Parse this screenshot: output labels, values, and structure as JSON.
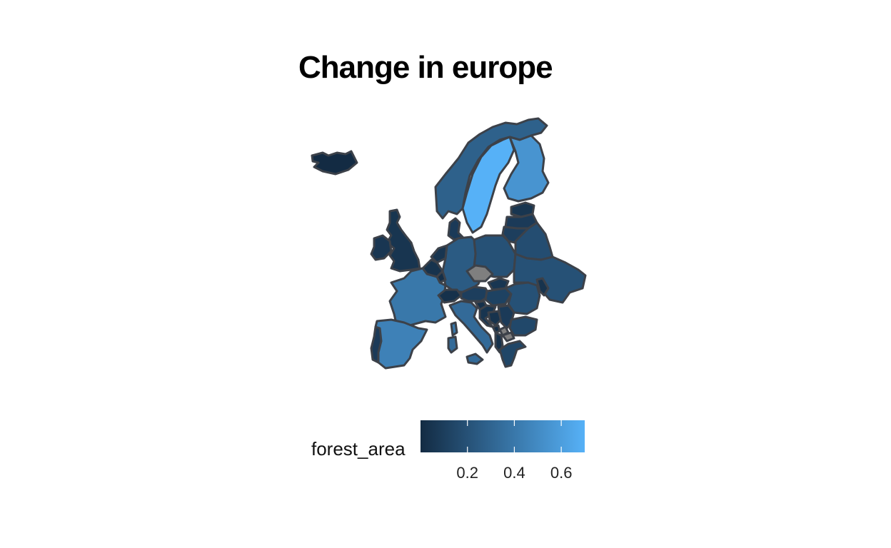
{
  "title": "Change in europe",
  "legend": {
    "title": "forest_area",
    "min": 0.0,
    "max": 0.7,
    "color_low": "#132B43",
    "color_high": "#56B1F7",
    "na_color": "#7f7f7f",
    "ticks": [
      {
        "value": 0.2,
        "label": "0.2"
      },
      {
        "value": 0.4,
        "label": "0.4"
      },
      {
        "value": 0.6,
        "label": "0.6"
      }
    ]
  },
  "countries": [
    {
      "name": "Iceland",
      "value": 0.0
    },
    {
      "name": "Norway",
      "value": 0.28
    },
    {
      "name": "Sweden",
      "value": 0.7
    },
    {
      "name": "Finland",
      "value": 0.55
    },
    {
      "name": "United Kingdom",
      "value": 0.05
    },
    {
      "name": "Ireland",
      "value": 0.06
    },
    {
      "name": "Denmark",
      "value": 0.08
    },
    {
      "name": "Estonia",
      "value": 0.05
    },
    {
      "name": "Latvia",
      "value": 0.08
    },
    {
      "name": "Lithuania",
      "value": 0.1
    },
    {
      "name": "Belarus",
      "value": 0.18
    },
    {
      "name": "Poland",
      "value": 0.2
    },
    {
      "name": "Germany",
      "value": 0.25
    },
    {
      "name": "Netherlands",
      "value": 0.05
    },
    {
      "name": "Belgium",
      "value": 0.04
    },
    {
      "name": "Luxembourg",
      "value": 0.02
    },
    {
      "name": "France",
      "value": 0.4
    },
    {
      "name": "Switzerland",
      "value": 0.03
    },
    {
      "name": "Austria",
      "value": 0.1
    },
    {
      "name": "Czechia",
      "value": null
    },
    {
      "name": "Slovakia",
      "value": 0.06
    },
    {
      "name": "Hungary",
      "value": 0.12
    },
    {
      "name": "Ukraine",
      "value": 0.2
    },
    {
      "name": "Moldova",
      "value": 0.04
    },
    {
      "name": "Romania",
      "value": 0.2
    },
    {
      "name": "Italy",
      "value": 0.33
    },
    {
      "name": "Slovenia",
      "value": 0.03
    },
    {
      "name": "Croatia",
      "value": 0.05
    },
    {
      "name": "Bosnia and Herzegovina",
      "value": 0.04
    },
    {
      "name": "Serbia",
      "value": 0.08
    },
    {
      "name": "Montenegro",
      "value": 0.02
    },
    {
      "name": "Kosovo",
      "value": null
    },
    {
      "name": "Albania",
      "value": 0.03
    },
    {
      "name": "North Macedonia",
      "value": null
    },
    {
      "name": "Bulgaria",
      "value": 0.15
    },
    {
      "name": "Greece",
      "value": 0.14
    },
    {
      "name": "Spain",
      "value": 0.45
    },
    {
      "name": "Portugal",
      "value": 0.08
    },
    {
      "name": "Corsica",
      "value": 0.4
    },
    {
      "name": "Sardinia",
      "value": 0.33
    },
    {
      "name": "Sicily",
      "value": 0.33
    }
  ]
}
